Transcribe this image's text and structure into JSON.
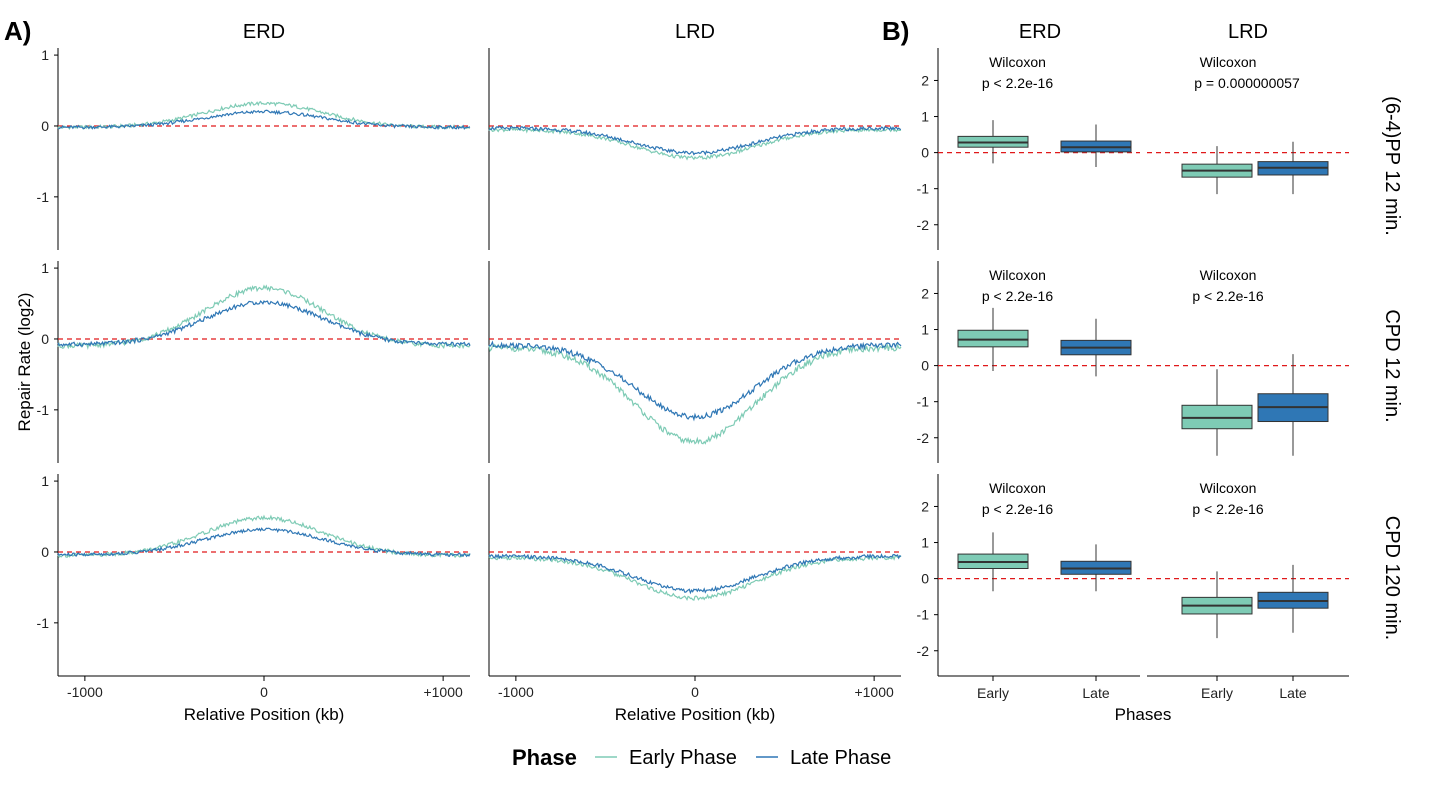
{
  "colors": {
    "early": "#7ecbb5",
    "late": "#2f77b5",
    "zero_line": "#e0191a",
    "axis": "#000000"
  },
  "panel_labels": {
    "a": "A)",
    "b": "B)"
  },
  "legend": {
    "title": "Phase",
    "items": [
      "Early Phase",
      "Late Phase"
    ]
  },
  "chart_data": [
    {
      "type": "line",
      "panel": "A",
      "columns": [
        "ERD",
        "LRD"
      ],
      "rows": [
        "(6-4)PP 12 min.",
        "CPD 12 min.",
        "CPD 120 min."
      ],
      "xlabel": "Relative Position (kb)",
      "ylabel": "Repair Rate (log2)",
      "xticks": [
        "-1000",
        "0",
        "+1000"
      ],
      "xlim": [
        -1150,
        1150
      ],
      "yticks": [
        "1",
        "0",
        "-1"
      ],
      "ylim": [
        -1.75,
        1.1
      ],
      "reference_line": 0,
      "series_names": [
        "Early Phase",
        "Late Phase"
      ],
      "curves": [
        {
          "col": "ERD",
          "row": "(6-4)PP 12 min.",
          "peaks": {
            "Early Phase": 0.32,
            "Late Phase": 0.2
          },
          "ends": {
            "Early Phase": -0.02,
            "Late Phase": -0.02
          }
        },
        {
          "col": "LRD",
          "row": "(6-4)PP 12 min.",
          "peaks": {
            "Early Phase": -0.45,
            "Late Phase": -0.38
          },
          "ends": {
            "Early Phase": -0.05,
            "Late Phase": -0.03
          }
        },
        {
          "col": "ERD",
          "row": "CPD 12 min.",
          "peaks": {
            "Early Phase": 0.72,
            "Late Phase": 0.52
          },
          "ends": {
            "Early Phase": -0.1,
            "Late Phase": -0.08
          }
        },
        {
          "col": "LRD",
          "row": "CPD 12 min.",
          "peaks": {
            "Early Phase": -1.45,
            "Late Phase": -1.1
          },
          "ends": {
            "Early Phase": -0.12,
            "Late Phase": -0.08
          }
        },
        {
          "col": "ERD",
          "row": "CPD 120 min.",
          "peaks": {
            "Early Phase": 0.48,
            "Late Phase": 0.32
          },
          "ends": {
            "Early Phase": -0.05,
            "Late Phase": -0.04
          }
        },
        {
          "col": "LRD",
          "row": "CPD 120 min.",
          "peaks": {
            "Early Phase": -0.65,
            "Late Phase": -0.55
          },
          "ends": {
            "Early Phase": -0.08,
            "Late Phase": -0.06
          }
        }
      ]
    },
    {
      "type": "box",
      "panel": "B",
      "columns": [
        "ERD",
        "LRD"
      ],
      "rows": [
        "(6-4)PP 12 min.",
        "CPD 12 min.",
        "CPD 120 min."
      ],
      "xlabel": "Phases",
      "categories": [
        "Early",
        "Late"
      ],
      "yticks": [
        "2",
        "1",
        "0",
        "-1",
        "-2"
      ],
      "ylim": [
        -2.7,
        2.9
      ],
      "reference_line": 0,
      "groups": [
        {
          "col": "ERD",
          "row": "(6-4)PP 12 min.",
          "test": "Wilcoxon",
          "p": "p < 2.2e-16",
          "boxes": [
            {
              "phase": "Early",
              "min": -0.3,
              "q1": 0.15,
              "median": 0.28,
              "q3": 0.45,
              "max": 0.9
            },
            {
              "phase": "Late",
              "min": -0.4,
              "q1": 0.02,
              "median": 0.15,
              "q3": 0.32,
              "max": 0.78
            }
          ]
        },
        {
          "col": "LRD",
          "row": "(6-4)PP 12 min.",
          "test": "Wilcoxon",
          "p": "p = 0.000000057",
          "boxes": [
            {
              "phase": "Early",
              "min": -1.15,
              "q1": -0.68,
              "median": -0.5,
              "q3": -0.32,
              "max": 0.18
            },
            {
              "phase": "Late",
              "min": -1.15,
              "q1": -0.62,
              "median": -0.42,
              "q3": -0.25,
              "max": 0.3
            }
          ]
        },
        {
          "col": "ERD",
          "row": "CPD 12 min.",
          "test": "Wilcoxon",
          "p": "p < 2.2e-16",
          "boxes": [
            {
              "phase": "Early",
              "min": -0.15,
              "q1": 0.52,
              "median": 0.72,
              "q3": 0.98,
              "max": 1.6
            },
            {
              "phase": "Late",
              "min": -0.3,
              "q1": 0.3,
              "median": 0.5,
              "q3": 0.7,
              "max": 1.3
            }
          ]
        },
        {
          "col": "LRD",
          "row": "CPD 12 min.",
          "test": "Wilcoxon",
          "p": "p < 2.2e-16",
          "boxes": [
            {
              "phase": "Early",
              "min": -2.5,
              "q1": -1.75,
              "median": -1.45,
              "q3": -1.1,
              "max": -0.1
            },
            {
              "phase": "Late",
              "min": -2.5,
              "q1": -1.55,
              "median": -1.15,
              "q3": -0.78,
              "max": 0.32
            }
          ]
        },
        {
          "col": "ERD",
          "row": "CPD 120 min.",
          "test": "Wilcoxon",
          "p": "p < 2.2e-16",
          "boxes": [
            {
              "phase": "Early",
              "min": -0.35,
              "q1": 0.28,
              "median": 0.46,
              "q3": 0.68,
              "max": 1.28
            },
            {
              "phase": "Late",
              "min": -0.35,
              "q1": 0.12,
              "median": 0.28,
              "q3": 0.48,
              "max": 0.95
            }
          ]
        },
        {
          "col": "LRD",
          "row": "CPD 120 min.",
          "test": "Wilcoxon",
          "p": "p < 2.2e-16",
          "boxes": [
            {
              "phase": "Early",
              "min": -1.65,
              "q1": -0.98,
              "median": -0.75,
              "q3": -0.52,
              "max": 0.2
            },
            {
              "phase": "Late",
              "min": -1.5,
              "q1": -0.82,
              "median": -0.62,
              "q3": -0.38,
              "max": 0.38
            }
          ]
        }
      ]
    }
  ]
}
